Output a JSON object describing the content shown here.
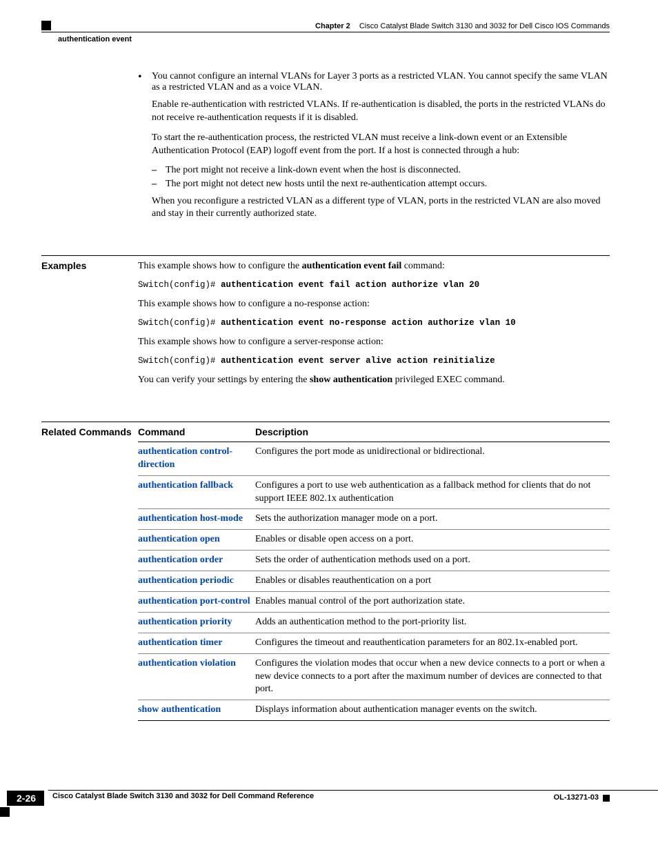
{
  "header": {
    "chapter_label": "Chapter 2",
    "chapter_title": "Cisco Catalyst Blade Switch 3130 and 3032 for Dell Cisco IOS Commands",
    "section": "authentication event"
  },
  "intro": {
    "bullet1": "You cannot configure an internal VLANs for Layer 3 ports as a restricted VLAN. You cannot specify the same VLAN as a restricted VLAN and as a voice VLAN.",
    "p2": "Enable re-authentication with restricted VLANs. If re-authentication is disabled, the ports in the restricted VLANs do not receive re-authentication requests if it is disabled.",
    "p3": "To start the re-authentication process, the restricted VLAN must receive a link-down event or an Extensible Authentication Protocol (EAP) logoff event from the port. If a host is connected through a hub:",
    "d1": "The port might not receive a link-down event when the host is disconnected.",
    "d2": "The port might not detect new hosts until the next re-authentication attempt occurs.",
    "p4": "When you reconfigure a restricted VLAN as a different type of VLAN, ports in the restricted VLAN are also moved and stay in their currently authorized state."
  },
  "examples": {
    "label": "Examples",
    "p1_pre": "This example shows how to configure the ",
    "p1_bold": "authentication event fail",
    "p1_post": " command:",
    "c1_prompt": "Switch(config)# ",
    "c1_cmd": "authentication event fail action authorize vlan 20",
    "p2": "This example shows how to configure a no-response action:",
    "c2_prompt": "Switch(config)# ",
    "c2_cmd": "authentication event no-response action authorize vlan 10",
    "p3": "This example shows how to configure a server-response action:",
    "c3_prompt": "Switch(config)# ",
    "c3_cmd": "authentication event server alive action reinitialize",
    "p4_pre": "You can verify your settings by entering the ",
    "p4_bold": "show authentication",
    "p4_post": " privileged EXEC command."
  },
  "related": {
    "label": "Related Commands",
    "col1": "Command",
    "col2": "Description",
    "rows": [
      {
        "cmd": "authentication control-direction",
        "desc": "Configures the port mode as unidirectional or bidirectional."
      },
      {
        "cmd": "authentication fallback",
        "desc": "Configures a port to use web authentication as a fallback method for clients that do not support IEEE 802.1x authentication"
      },
      {
        "cmd": "authentication host-mode",
        "desc": "Sets the authorization manager mode on a port."
      },
      {
        "cmd": "authentication open",
        "desc": "Enables or disable open access on a port."
      },
      {
        "cmd": "authentication order",
        "desc": "Sets the order of authentication methods used on a port."
      },
      {
        "cmd": "authentication periodic",
        "desc": "Enables or disables reauthentication on a port"
      },
      {
        "cmd": "authentication port-control",
        "desc": "Enables manual control of the port authorization state."
      },
      {
        "cmd": "authentication priority",
        "desc": "Adds an authentication method to the port-priority list."
      },
      {
        "cmd": "authentication timer",
        "desc": "Configures the timeout and reauthentication parameters for an 802.1x-enabled port."
      },
      {
        "cmd": "authentication violation",
        "desc": "Configures the violation modes that occur when a new device connects to a port or when a new device connects to a port after the maximum number of devices are connected to that port."
      },
      {
        "cmd": "show authentication",
        "desc": "Displays information about authentication manager events on the switch."
      }
    ]
  },
  "footer": {
    "title": "Cisco Catalyst Blade Switch 3130 and 3032 for Dell Command Reference",
    "page": "2-26",
    "docid": "OL-13271-03"
  }
}
